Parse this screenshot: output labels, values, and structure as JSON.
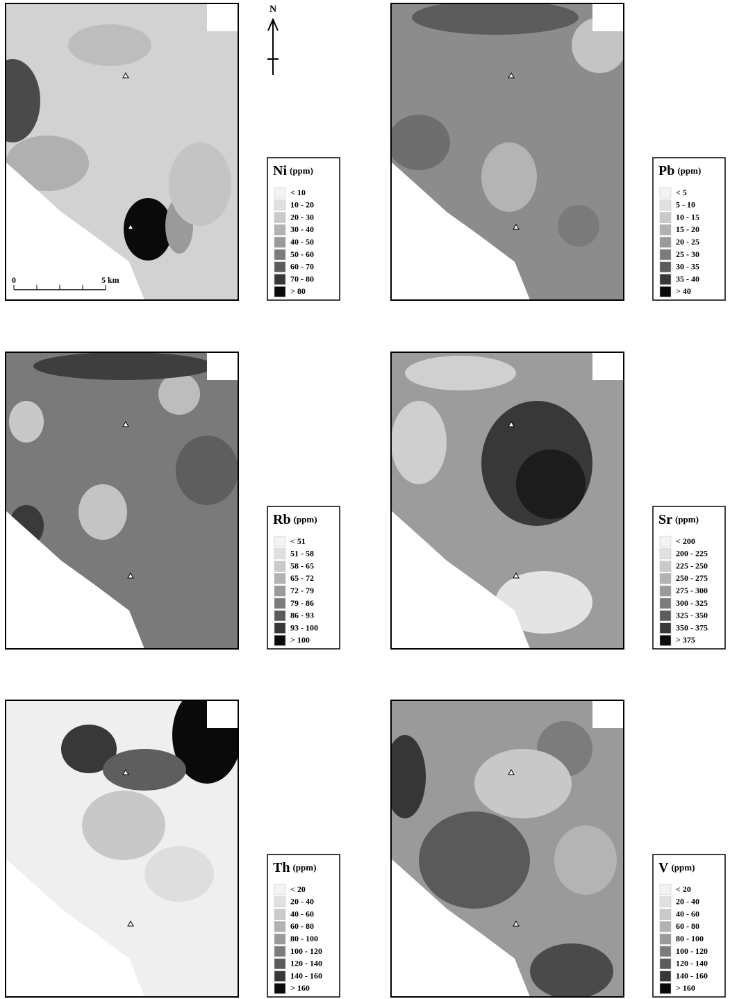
{
  "north": "N",
  "scale": {
    "start": "0",
    "end": "5 km"
  },
  "panels": [
    {
      "element": "Ni",
      "unit": "(ppm)",
      "classes": [
        "< 10",
        "10 - 20",
        "20 - 30",
        "30 - 40",
        "40 - 50",
        "50 - 60",
        "60 - 70",
        "70 - 80",
        "> 80"
      ]
    },
    {
      "element": "Pb",
      "unit": "(ppm)",
      "classes": [
        "< 5",
        "5 - 10",
        "10 - 15",
        "15 - 20",
        "20 - 25",
        "25 - 30",
        "30 - 35",
        "35 - 40",
        "> 40"
      ]
    },
    {
      "element": "Rb",
      "unit": "(ppm)",
      "classes": [
        "< 51",
        "51 - 58",
        "58 - 65",
        "65 - 72",
        "72 - 79",
        "79 - 86",
        "86 - 93",
        "93 - 100",
        "> 100"
      ]
    },
    {
      "element": "Sr",
      "unit": "(ppm)",
      "classes": [
        "< 200",
        "200 - 225",
        "225 - 250",
        "250 - 275",
        "275 - 300",
        "300 - 325",
        "325 - 350",
        "350 - 375",
        "> 375"
      ]
    },
    {
      "element": "Th",
      "unit": "(ppm)",
      "classes": [
        "< 20",
        "20 - 40",
        "40 - 60",
        "60 - 80",
        "80 - 100",
        "100 - 120",
        "120 - 140",
        "140 - 160",
        "> 160"
      ]
    },
    {
      "element": "V",
      "unit": "(ppm)",
      "classes": [
        "< 20",
        "20 - 40",
        "40 - 60",
        "60 - 80",
        "80 - 100",
        "100 - 120",
        "120 - 140",
        "140 - 160",
        "> 160"
      ]
    }
  ]
}
